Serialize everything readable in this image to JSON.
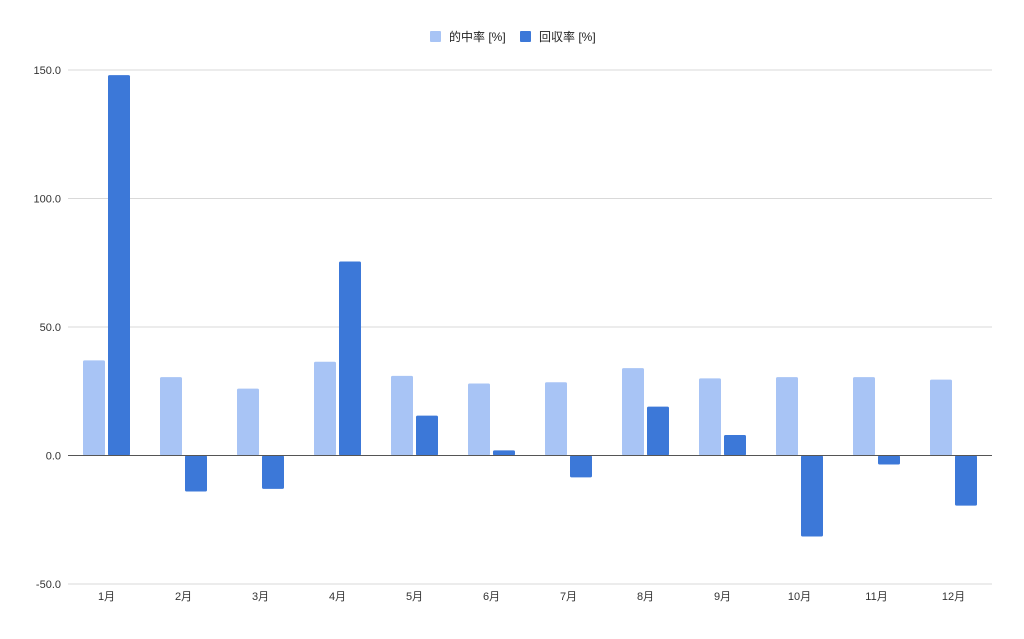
{
  "chart_data": {
    "type": "bar",
    "categories": [
      "1月",
      "2月",
      "3月",
      "4月",
      "5月",
      "6月",
      "7月",
      "8月",
      "9月",
      "10月",
      "11月",
      "12月"
    ],
    "series": [
      {
        "name": "的中率 [%]",
        "color": "#a8c4f5",
        "values": [
          37.0,
          30.5,
          26.0,
          36.5,
          31.0,
          28.0,
          28.5,
          34.0,
          30.0,
          30.5,
          30.5,
          29.5
        ]
      },
      {
        "name": "回収率 [%]",
        "color": "#3c78d8",
        "values": [
          148.0,
          -14.0,
          -13.0,
          75.5,
          15.5,
          2.0,
          -8.5,
          19.0,
          8.0,
          -31.5,
          -3.5,
          -19.5
        ]
      }
    ],
    "ylim": [
      -50,
      150
    ],
    "yticks": [
      "150.0",
      "100.0",
      "50.0",
      "0.0",
      "-50.0"
    ],
    "ytick_values": [
      150,
      100,
      50,
      0,
      -50
    ],
    "grid": true,
    "legend_position": "top"
  }
}
